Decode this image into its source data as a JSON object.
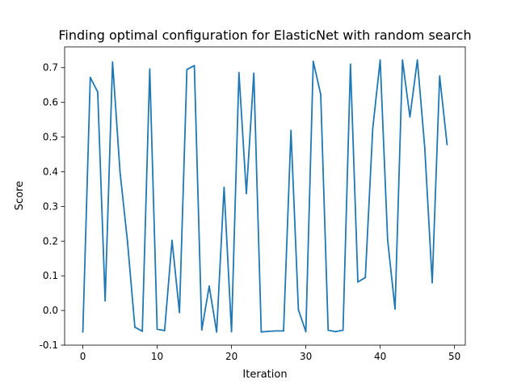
{
  "chart_data": {
    "type": "line",
    "title": "Finding optimal configuration for ElasticNet with random search",
    "xlabel": "Iteration",
    "ylabel": "Score",
    "xlim": [
      -2.45,
      51.45
    ],
    "ylim": [
      -0.1,
      0.76
    ],
    "xticks": [
      0,
      10,
      20,
      30,
      40,
      50
    ],
    "yticks": [
      -0.1,
      0.0,
      0.1,
      0.2,
      0.3,
      0.4,
      0.5,
      0.6,
      0.7
    ],
    "grid": false,
    "legend": "none",
    "series_color": "#1f77b4",
    "x": [
      0,
      1,
      2,
      3,
      4,
      5,
      6,
      7,
      8,
      9,
      10,
      11,
      12,
      13,
      14,
      15,
      16,
      17,
      18,
      19,
      20,
      21,
      22,
      23,
      24,
      25,
      26,
      27,
      28,
      29,
      30,
      31,
      32,
      33,
      34,
      35,
      36,
      37,
      38,
      39,
      40,
      41,
      42,
      43,
      44,
      45,
      46,
      47,
      48,
      49
    ],
    "y": [
      -0.062,
      0.672,
      0.63,
      0.028,
      0.716,
      0.4,
      0.2,
      -0.048,
      -0.06,
      0.696,
      -0.054,
      -0.058,
      0.202,
      -0.006,
      0.695,
      0.706,
      -0.056,
      0.07,
      -0.062,
      0.355,
      -0.061,
      0.686,
      0.337,
      0.684,
      -0.062,
      -0.06,
      -0.059,
      -0.059,
      0.519,
      0.002,
      -0.061,
      0.718,
      0.623,
      -0.057,
      -0.061,
      -0.057,
      0.71,
      0.082,
      0.095,
      0.525,
      0.722,
      0.204,
      0.004,
      0.722,
      0.558,
      0.722,
      0.468,
      0.08,
      0.676,
      0.478
    ]
  }
}
